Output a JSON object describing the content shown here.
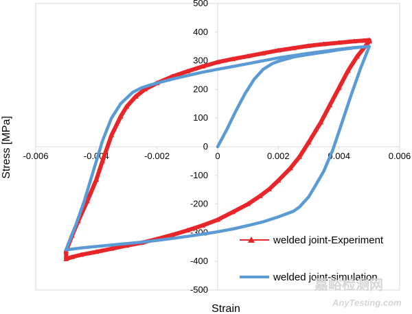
{
  "chart_data": {
    "type": "line",
    "title": "",
    "xlabel": "Strain",
    "ylabel": "Stress [MPa]",
    "xlim": [
      -0.006,
      0.006
    ],
    "ylim": [
      -500,
      500
    ],
    "xticks": [
      -0.006,
      -0.004,
      -0.002,
      0,
      0.002,
      0.004,
      0.006
    ],
    "xtick_labels": [
      "-0.006",
      "-0.004",
      "-0.002",
      "0",
      "0.002",
      "0.004",
      "0.006"
    ],
    "yticks": [
      -500,
      -400,
      -300,
      -200,
      -100,
      0,
      100,
      200,
      300,
      400,
      500
    ],
    "ytick_labels": [
      "-500",
      "-400",
      "-300",
      "-200",
      "-100",
      "0",
      "100",
      "200",
      "300",
      "400",
      "500"
    ],
    "grid": false,
    "legend_position": "bottom-right",
    "series": [
      {
        "name": "welded joint-Experiment",
        "color": "#e8262a",
        "marker": "triangle",
        "x": [
          0.005,
          0.0046,
          0.0043,
          0.004,
          0.0037,
          0.0034,
          0.003,
          0.0027,
          0.0024,
          0.002,
          0.0017,
          0.0014,
          0.001,
          0.0005,
          0,
          -0.0005,
          -0.001,
          -0.0015,
          -0.002,
          -0.0025,
          -0.003,
          -0.0035,
          -0.004,
          -0.0045,
          -0.0048,
          -0.005,
          -0.005,
          -0.0048,
          -0.0046,
          -0.0043,
          -0.004,
          -0.0038,
          -0.0035,
          -0.0032,
          -0.003,
          -0.0027,
          -0.0024,
          -0.002,
          -0.0015,
          -0.001,
          -0.0005,
          0,
          0.0005,
          0.001,
          0.0015,
          0.002,
          0.0025,
          0.003,
          0.0035,
          0.004,
          0.0045,
          0.0048,
          0.005,
          0.005
        ],
        "y": [
          368,
          315,
          265,
          205,
          145,
          85,
          15,
          -35,
          -75,
          -118,
          -148,
          -172,
          -200,
          -228,
          -255,
          -275,
          -292,
          -308,
          -322,
          -335,
          -345,
          -356,
          -367,
          -377,
          -385,
          -392,
          -365,
          -310,
          -260,
          -190,
          -115,
          -50,
          40,
          105,
          140,
          175,
          200,
          222,
          245,
          263,
          280,
          295,
          306,
          316,
          326,
          336,
          344,
          352,
          358,
          363,
          368,
          370,
          372,
          368
        ]
      },
      {
        "name": "welded joint-simulation",
        "color": "#5b9bd5",
        "marker": "none",
        "x": [
          0,
          0.0003,
          0.0006,
          0.0009,
          0.0012,
          0.0015,
          0.0018,
          0.002,
          0.0025,
          0.003,
          0.0035,
          0.004,
          0.0045,
          0.005,
          0.005,
          0.0047,
          0.0044,
          0.0041,
          0.0038,
          0.0035,
          0.0032,
          0.003,
          0.0027,
          0.0025,
          0.002,
          0.0015,
          0.001,
          0.0005,
          0,
          -0.0005,
          -0.001,
          -0.0015,
          -0.002,
          -0.0025,
          -0.003,
          -0.0035,
          -0.004,
          -0.0045,
          -0.005,
          -0.005,
          -0.0047,
          -0.0044,
          -0.0041,
          -0.0038,
          -0.0035,
          -0.0032,
          -0.003,
          -0.0028,
          -0.0025,
          -0.0022,
          -0.002,
          -0.0015,
          -0.001,
          -0.0005,
          0,
          0.0005,
          0.001,
          0.0015,
          0.002,
          0.0025,
          0.003,
          0.0035,
          0.004,
          0.0045,
          0.005
        ],
        "y": [
          0,
          60,
          125,
          185,
          235,
          270,
          290,
          298,
          313,
          322,
          330,
          338,
          345,
          350,
          350,
          270,
          180,
          85,
          -10,
          -85,
          -140,
          -175,
          -210,
          -225,
          -245,
          -262,
          -275,
          -287,
          -297,
          -305,
          -313,
          -320,
          -327,
          -333,
          -338,
          -343,
          -348,
          -353,
          -360,
          -360,
          -280,
          -190,
          -85,
          20,
          100,
          150,
          170,
          190,
          206,
          216,
          222,
          236,
          248,
          260,
          270,
          280,
          290,
          300,
          310,
          318,
          326,
          333,
          340,
          346,
          350
        ]
      }
    ]
  },
  "watermark": {
    "cn": "嘉峪检测网",
    "en": "AnyTesting.com"
  }
}
